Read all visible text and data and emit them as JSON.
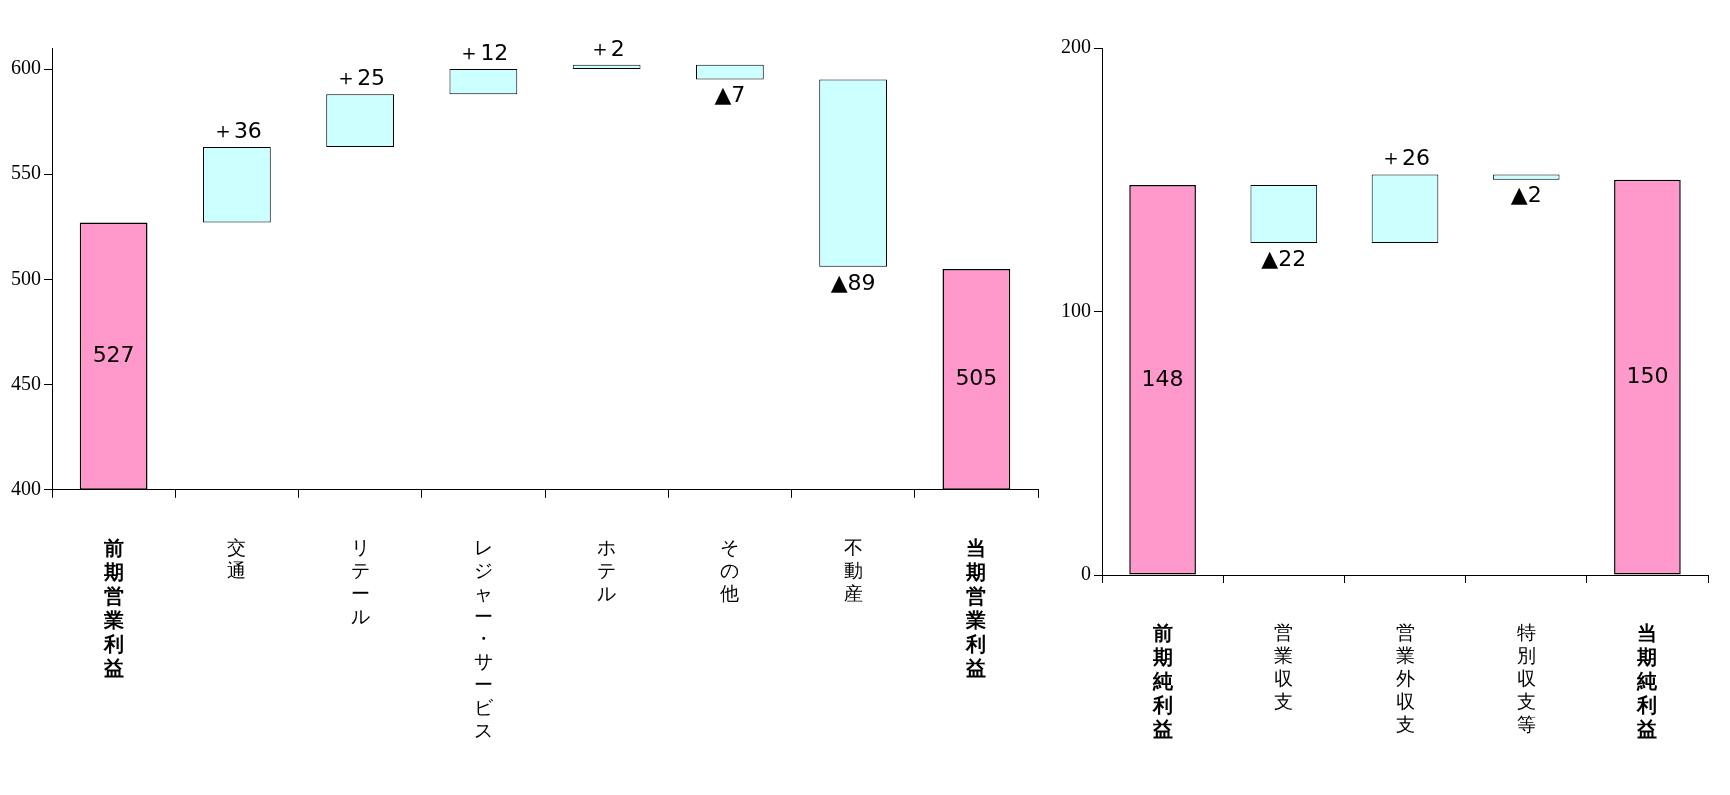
{
  "chart_data": [
    {
      "type": "bar",
      "categories": [
        "前期営業利益",
        "交通",
        "リテール",
        "レジャー・サービス",
        "ホテル",
        "その他",
        "不動産",
        "当期営業利益"
      ],
      "values": [
        527,
        36,
        25,
        12,
        2,
        -7,
        -89,
        505
      ],
      "base": [
        null,
        527,
        563,
        588,
        600,
        602,
        595,
        null
      ],
      "colors": [
        "#ff99cc",
        "#ccffff",
        "#ccffff",
        "#ccffff",
        "#ccffff",
        "#ccffff",
        "#ccffff",
        "#ff99cc"
      ],
      "value_labels": [
        "527",
        "＋36",
        "＋25",
        "＋12",
        "＋2",
        "▲7",
        "▲89",
        "505"
      ],
      "ylim": [
        400,
        610
      ],
      "yticks": [
        400,
        450,
        500,
        550,
        600
      ],
      "grid": false,
      "legend": false
    },
    {
      "type": "bar",
      "categories": [
        "前期純利益",
        "営業収支",
        "営業外収支",
        "特別収支等",
        "当期純利益"
      ],
      "values": [
        148,
        -22,
        26,
        -2,
        150
      ],
      "base": [
        null,
        148,
        126,
        152,
        null
      ],
      "colors": [
        "#ff99cc",
        "#ccffff",
        "#ccffff",
        "#ccffff",
        "#ff99cc"
      ],
      "value_labels": [
        "148",
        "▲22",
        "＋26",
        "▲2",
        "150"
      ],
      "ylim": [
        0,
        200
      ],
      "yticks": [
        0,
        100,
        200
      ],
      "grid": false,
      "legend": false
    }
  ]
}
